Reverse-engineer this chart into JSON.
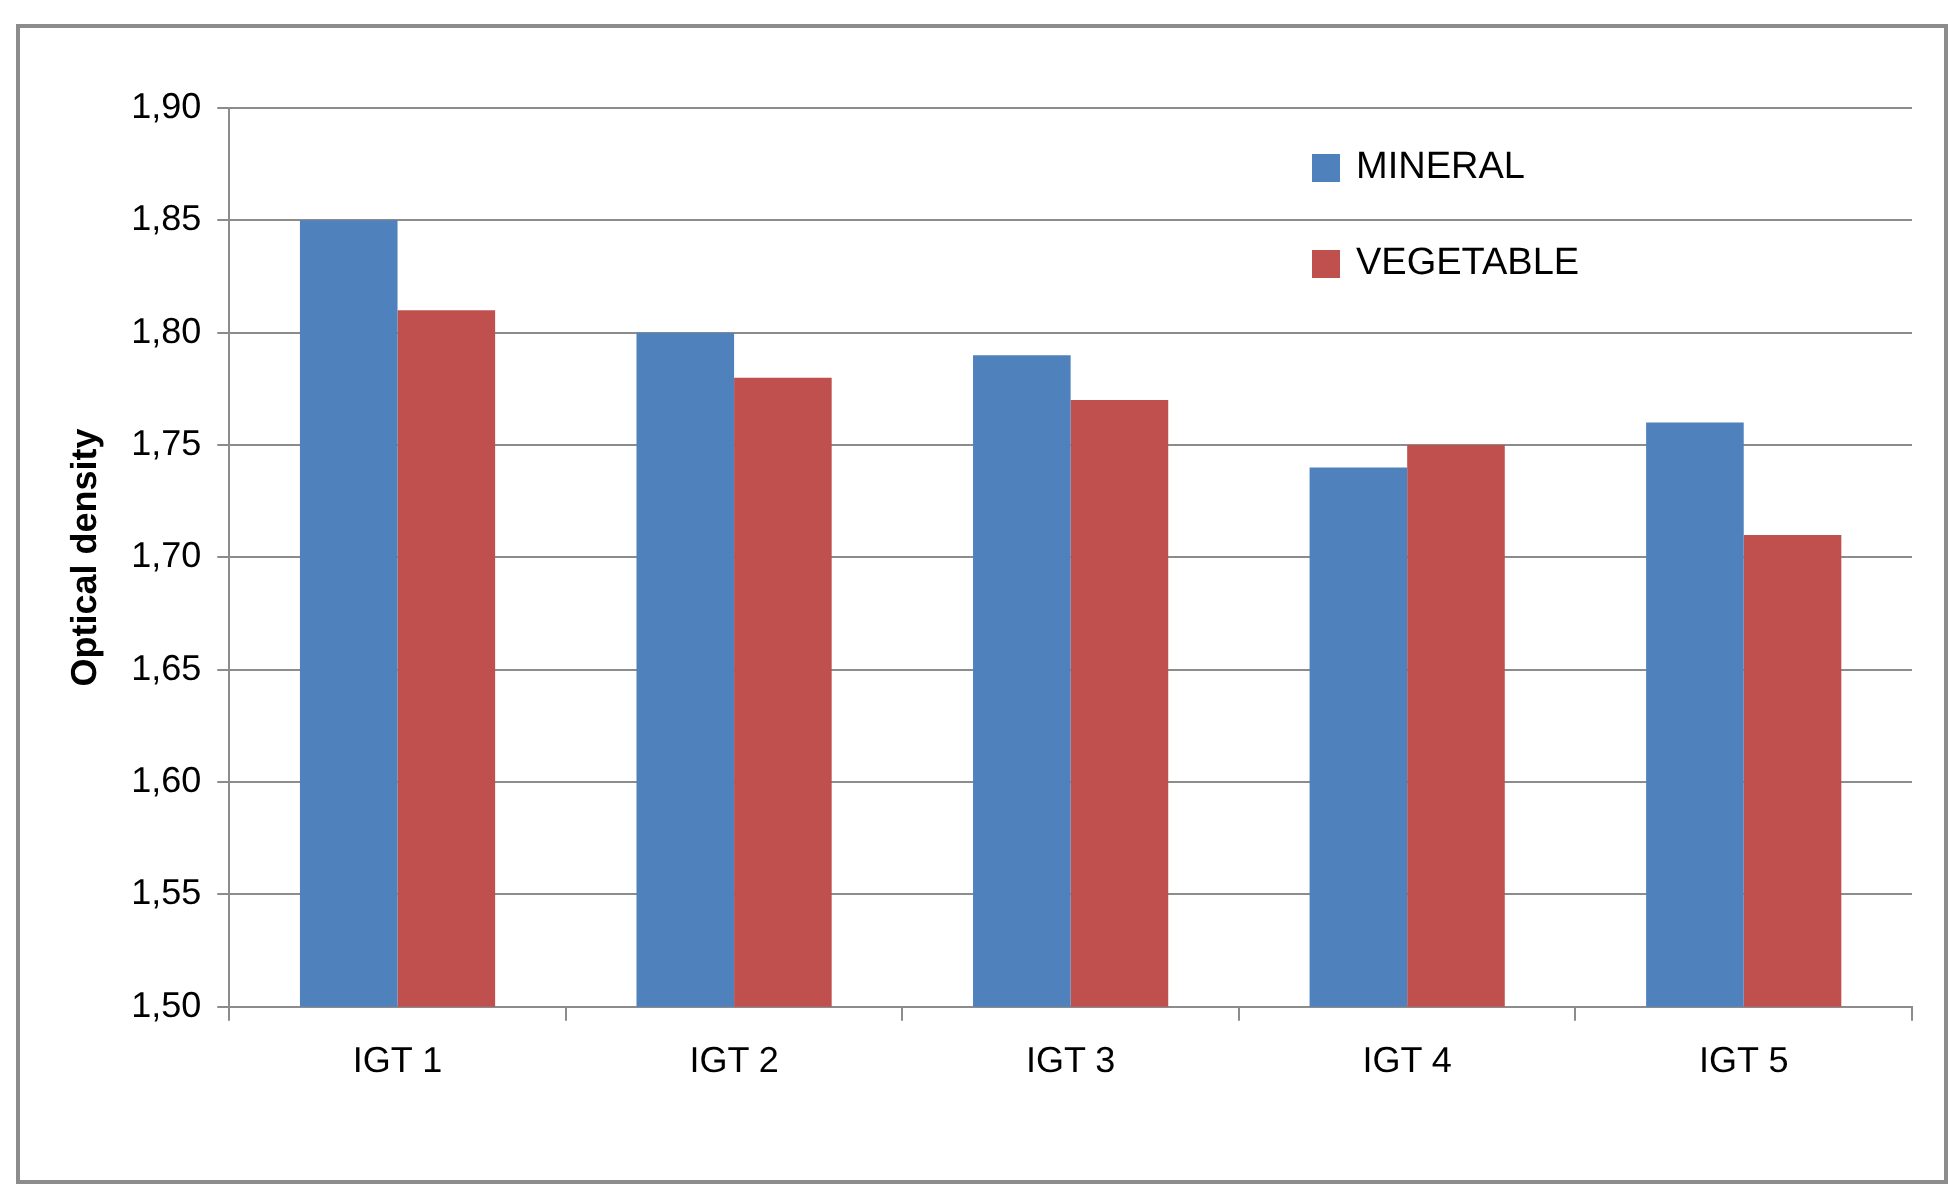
{
  "chart_data": {
    "type": "bar",
    "ylabel": "Optical density",
    "categories": [
      "IGT 1",
      "IGT 2",
      "IGT 3",
      "IGT 4",
      "IGT 5"
    ],
    "series": [
      {
        "name": "MINERAL",
        "color": "#4f81bd",
        "values": [
          1.85,
          1.8,
          1.79,
          1.74,
          1.76
        ]
      },
      {
        "name": "VEGETABLE",
        "color": "#c0504d",
        "values": [
          1.81,
          1.78,
          1.77,
          1.75,
          1.71
        ]
      }
    ],
    "ylim": [
      1.5,
      1.9
    ],
    "yticks": [
      {
        "value": 1.5,
        "label": "1,50"
      },
      {
        "value": 1.55,
        "label": "1,55"
      },
      {
        "value": 1.6,
        "label": "1,60"
      },
      {
        "value": 1.65,
        "label": "1,65"
      },
      {
        "value": 1.7,
        "label": "1,70"
      },
      {
        "value": 1.75,
        "label": "1,75"
      },
      {
        "value": 1.8,
        "label": "1,80"
      },
      {
        "value": 1.85,
        "label": "1,85"
      },
      {
        "value": 1.9,
        "label": "1,90"
      }
    ],
    "grid": "y",
    "legend": "top right"
  }
}
